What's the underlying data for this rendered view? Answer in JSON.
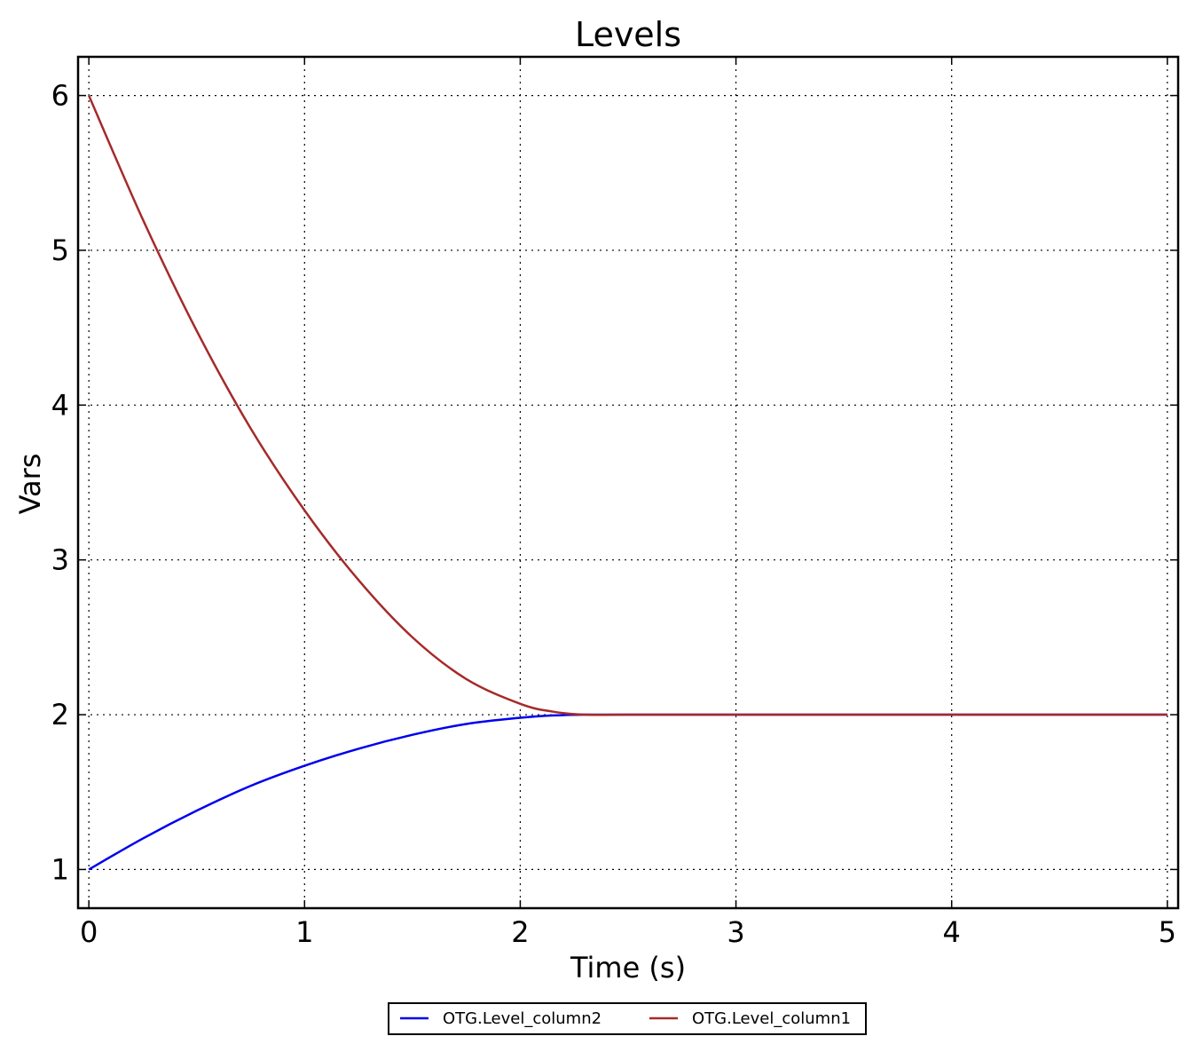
{
  "chart_data": {
    "type": "line",
    "title": "Levels",
    "xlabel": "Time (s)",
    "ylabel": "Vars",
    "xlim": [
      -0.05,
      5.05
    ],
    "ylim": [
      0.75,
      6.25
    ],
    "xticks": [
      0,
      1,
      2,
      3,
      4,
      5
    ],
    "yticks": [
      1,
      2,
      3,
      4,
      5,
      6
    ],
    "xtick_labels": [
      "0",
      "1",
      "2",
      "3",
      "4",
      "5"
    ],
    "ytick_labels": [
      "1",
      "2",
      "3",
      "4",
      "5",
      "6"
    ],
    "grid": true,
    "legend_position": "bottom-center",
    "series": [
      {
        "name": "OTG.Level_column2",
        "color": "#0000ee",
        "x": [
          0,
          0.25,
          0.5,
          0.75,
          1.0,
          1.25,
          1.5,
          1.75,
          2.0,
          2.15,
          2.3,
          2.5,
          3.0,
          3.5,
          4.0,
          4.5,
          5.0
        ],
        "y": [
          1.0,
          1.2,
          1.38,
          1.54,
          1.67,
          1.78,
          1.87,
          1.94,
          1.98,
          1.995,
          2.0,
          2.0,
          2.0,
          2.0,
          2.0,
          2.0,
          2.0
        ]
      },
      {
        "name": "OTG.Level_column1",
        "color": "#a52a2a",
        "x": [
          0,
          0.25,
          0.5,
          0.75,
          1.0,
          1.25,
          1.5,
          1.75,
          2.0,
          2.15,
          2.3,
          2.5,
          3.0,
          3.5,
          4.0,
          4.5,
          5.0
        ],
        "y": [
          6.0,
          5.2,
          4.48,
          3.85,
          3.32,
          2.87,
          2.5,
          2.23,
          2.07,
          2.02,
          2.0,
          2.0,
          2.0,
          2.0,
          2.0,
          2.0,
          2.0
        ]
      }
    ]
  }
}
